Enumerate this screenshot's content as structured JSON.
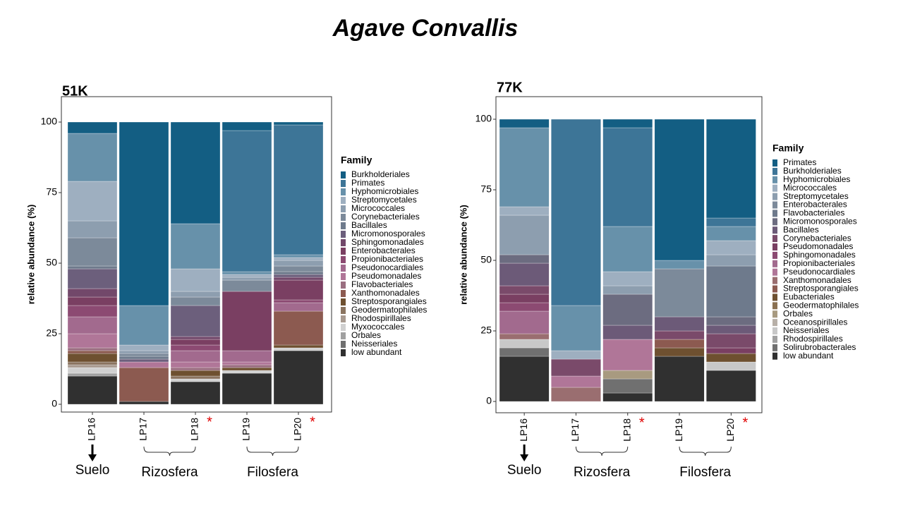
{
  "title": "Agave Convallis",
  "chart_data": [
    {
      "type": "bar",
      "stacked": true,
      "title": "51K",
      "y_label": "relative abundance (%)",
      "legend_title": "Family",
      "categories": [
        "LP16",
        "LP17",
        "LP18",
        "LP19",
        "LP20"
      ],
      "category_marks": [
        null,
        null,
        "*",
        null,
        "*"
      ],
      "groups": [
        "Suelo",
        "Rizosfera",
        "Filosfera"
      ],
      "ylim": [
        -2.75,
        109
      ],
      "yticks": [
        0,
        25,
        50,
        75,
        100
      ],
      "series": [
        {
          "name": "Burkholderiales",
          "color": "#135e83",
          "values": [
            4,
            65,
            36,
            3,
            1
          ]
        },
        {
          "name": "Primates",
          "color": "#3d7597",
          "values": [
            0,
            0,
            0,
            50,
            46
          ]
        },
        {
          "name": "Hyphomicrobiales",
          "color": "#6791aa",
          "values": [
            17,
            14,
            16,
            1,
            1
          ]
        },
        {
          "name": "Streptomycetales",
          "color": "#9eafc0",
          "values": [
            14,
            2,
            8,
            1,
            1
          ]
        },
        {
          "name": "Micrococcales",
          "color": "#8d9eaf",
          "values": [
            6,
            1,
            2,
            1,
            2
          ]
        },
        {
          "name": "Corynebacteriales",
          "color": "#7c8a9a",
          "values": [
            10,
            1,
            3,
            4,
            2
          ]
        },
        {
          "name": "Bacillales",
          "color": "#6e7a8c",
          "values": [
            1,
            1,
            0,
            0,
            1
          ]
        },
        {
          "name": "Micromonosporales",
          "color": "#6c5f7c",
          "values": [
            7,
            1,
            11,
            0,
            1
          ]
        },
        {
          "name": "Sphingomonadales",
          "color": "#72486a",
          "values": [
            3,
            0,
            1,
            0,
            1
          ]
        },
        {
          "name": "Enterobacterales",
          "color": "#7a3f62",
          "values": [
            3,
            0,
            2,
            21,
            7
          ]
        },
        {
          "name": "Propionibacteriales",
          "color": "#8c4a72",
          "values": [
            4,
            0,
            2,
            0,
            1
          ]
        },
        {
          "name": "Pseudonocardiales",
          "color": "#a26a8e",
          "values": [
            6,
            0,
            4,
            4,
            3
          ]
        },
        {
          "name": "Pseudomonadales",
          "color": "#b07698",
          "values": [
            5,
            2,
            2,
            1,
            0
          ]
        },
        {
          "name": "Flavobacteriales",
          "color": "#9a6e80",
          "values": [
            1,
            0,
            1,
            1,
            0
          ]
        },
        {
          "name": "Xanthomonadales",
          "color": "#8c5a50",
          "values": [
            1,
            12,
            0,
            0,
            12
          ]
        },
        {
          "name": "Streptosporangiales",
          "color": "#6e5030",
          "values": [
            3,
            0,
            2,
            1,
            1
          ]
        },
        {
          "name": "Geodermatophilales",
          "color": "#8a7460",
          "values": [
            1,
            0,
            1,
            0,
            0
          ]
        },
        {
          "name": "Rhodospirillales",
          "color": "#a89a90",
          "values": [
            1,
            0,
            0,
            0,
            0
          ]
        },
        {
          "name": "Myxococcales",
          "color": "#d0d0d0",
          "values": [
            2,
            0,
            1,
            1,
            1
          ]
        },
        {
          "name": "Orbales",
          "color": "#a0a0a0",
          "values": [
            1,
            0,
            0,
            0,
            0
          ]
        },
        {
          "name": "Neisseriales",
          "color": "#707070",
          "values": [
            0,
            0,
            0,
            0,
            0
          ]
        },
        {
          "name": "low abundant",
          "color": "#303030",
          "values": [
            10,
            1,
            8,
            11,
            19
          ]
        }
      ]
    },
    {
      "type": "bar",
      "stacked": true,
      "title": "77K",
      "y_label": "relative abundance (%)",
      "legend_title": "Family",
      "categories": [
        "LP16",
        "LP17",
        "LP18",
        "LP19",
        "LP20"
      ],
      "category_marks": [
        null,
        null,
        "*",
        null,
        "*"
      ],
      "groups": [
        "Suelo",
        "Rizosfera",
        "Filosfera"
      ],
      "ylim": [
        -4,
        108
      ],
      "yticks": [
        0,
        25,
        50,
        75,
        100
      ],
      "series": [
        {
          "name": "Primates",
          "color": "#135e83",
          "values": [
            3,
            0,
            3,
            50,
            35
          ]
        },
        {
          "name": "Burkholderiales",
          "color": "#3d7597",
          "values": [
            0,
            66,
            35,
            0,
            3
          ]
        },
        {
          "name": "Hyphomicrobiales",
          "color": "#6791aa",
          "values": [
            28,
            16,
            16,
            3,
            5
          ]
        },
        {
          "name": "Micrococcales",
          "color": "#9eafc0",
          "values": [
            3,
            3,
            5,
            0,
            5
          ]
        },
        {
          "name": "Streptomycetales",
          "color": "#8d9eaf",
          "values": [
            14,
            0,
            3,
            0,
            4
          ]
        },
        {
          "name": "Enterobacterales",
          "color": "#7c8a9a",
          "values": [
            0,
            0,
            0,
            17,
            0
          ]
        },
        {
          "name": "Flavobacteriales",
          "color": "#6e7a8c",
          "values": [
            0,
            0,
            0,
            0,
            18
          ]
        },
        {
          "name": "Micromonosporales",
          "color": "#6c6c80",
          "values": [
            3,
            0,
            11,
            0,
            3
          ]
        },
        {
          "name": "Bacillales",
          "color": "#6c5a78",
          "values": [
            8,
            0,
            5,
            5,
            3
          ]
        },
        {
          "name": "Corynebacteriales",
          "color": "#7a4a6a",
          "values": [
            3,
            6,
            0,
            3,
            5
          ]
        },
        {
          "name": "Pseudomonadales",
          "color": "#7a3f62",
          "values": [
            3,
            0,
            0,
            0,
            2
          ]
        },
        {
          "name": "Sphingomonadales",
          "color": "#8c4a72",
          "values": [
            3,
            0,
            0,
            0,
            0
          ]
        },
        {
          "name": "Propionibacteriales",
          "color": "#a26a8e",
          "values": [
            8,
            0,
            0,
            0,
            0
          ]
        },
        {
          "name": "Pseudonocardiales",
          "color": "#b07698",
          "values": [
            0,
            4,
            11,
            0,
            0
          ]
        },
        {
          "name": "Xanthomonadales",
          "color": "#9a6e70",
          "values": [
            2,
            5,
            0,
            0,
            0
          ]
        },
        {
          "name": "Streptosporangiales",
          "color": "#8c5a50",
          "values": [
            0,
            0,
            0,
            3,
            0
          ]
        },
        {
          "name": "Eubacteriales",
          "color": "#6e5030",
          "values": [
            0,
            0,
            0,
            3,
            3
          ]
        },
        {
          "name": "Geodermatophilales",
          "color": "#8a7050",
          "values": [
            0,
            0,
            0,
            0,
            0
          ]
        },
        {
          "name": "Orbales",
          "color": "#a89a80",
          "values": [
            0,
            0,
            3,
            0,
            0
          ]
        },
        {
          "name": "Oceanospirillales",
          "color": "#b8b0a8",
          "values": [
            0,
            0,
            0,
            0,
            0
          ]
        },
        {
          "name": "Neisseriales",
          "color": "#c8c8c8",
          "values": [
            3,
            0,
            0,
            0,
            3
          ]
        },
        {
          "name": "Rhodospirillales",
          "color": "#a0a0a0",
          "values": [
            0,
            0,
            0,
            0,
            0
          ]
        },
        {
          "name": "Solirubrobacterales",
          "color": "#707070",
          "values": [
            3,
            0,
            5,
            0,
            0
          ]
        },
        {
          "name": "low abundant",
          "color": "#303030",
          "values": [
            16,
            0,
            3,
            16,
            11
          ]
        }
      ]
    }
  ]
}
